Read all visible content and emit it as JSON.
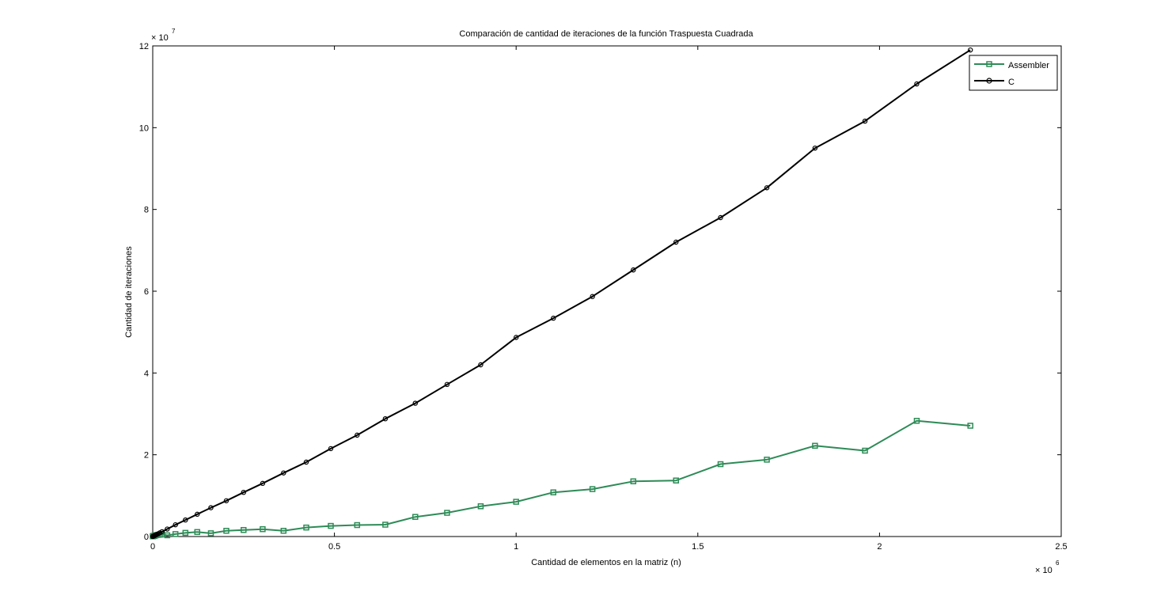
{
  "chart_data": {
    "type": "line",
    "title": "Comparación de cantidad de iteraciones de la función Traspuesta Cuadrada",
    "xlabel": "Cantidad de elementos en la matriz (n)",
    "ylabel": "Cantidad de iteraciones",
    "x_multiplier_base": "× 10",
    "x_multiplier_exp": "6",
    "y_multiplier_base": "× 10",
    "y_multiplier_exp": "7",
    "xlim": [
      0,
      2.5
    ],
    "ylim": [
      0,
      12
    ],
    "x_ticks": [
      0,
      0.5,
      1,
      1.5,
      2,
      2.5
    ],
    "x_tick_labels": [
      "0",
      "0.5",
      "1",
      "1.5",
      "2",
      "2.5"
    ],
    "y_ticks": [
      0,
      2,
      4,
      6,
      8,
      10,
      12
    ],
    "y_tick_labels": [
      "0",
      "2",
      "4",
      "6",
      "8",
      "10",
      "12"
    ],
    "grid": false,
    "legend_position": "top-right",
    "series": [
      {
        "name": "Assembler",
        "color": "#2e8b57",
        "marker": "square",
        "x": [
          0.0001,
          0.0004,
          0.0009,
          0.0016,
          0.0025,
          0.0036,
          0.0049,
          0.0064,
          0.0081,
          0.01,
          0.0144,
          0.0196,
          0.0256,
          0.04,
          0.0625,
          0.09,
          0.1225,
          0.16,
          0.2025,
          0.25,
          0.3025,
          0.36,
          0.4225,
          0.49,
          0.5625,
          0.64,
          0.7225,
          0.81,
          0.9025,
          1.0,
          1.1025,
          1.21,
          1.3225,
          1.44,
          1.5625,
          1.69,
          1.8225,
          1.96,
          2.1025,
          2.25
        ],
        "y": [
          0.005,
          0.008,
          0.01,
          0.012,
          0.015,
          0.016,
          0.02,
          0.025,
          0.03,
          0.035,
          0.04,
          0.045,
          0.05,
          0.03,
          0.06,
          0.09,
          0.11,
          0.08,
          0.14,
          0.16,
          0.18,
          0.14,
          0.22,
          0.26,
          0.28,
          0.29,
          0.48,
          0.58,
          0.74,
          0.85,
          1.08,
          1.16,
          1.35,
          1.37,
          1.77,
          1.88,
          2.22,
          2.1,
          2.83,
          2.71
        ]
      },
      {
        "name": "C",
        "color": "#000000",
        "marker": "circle",
        "x": [
          0.0001,
          0.0004,
          0.0009,
          0.0016,
          0.0025,
          0.0036,
          0.0049,
          0.0064,
          0.0081,
          0.01,
          0.0144,
          0.0196,
          0.0256,
          0.04,
          0.0625,
          0.09,
          0.1225,
          0.16,
          0.2025,
          0.25,
          0.3025,
          0.36,
          0.4225,
          0.49,
          0.5625,
          0.64,
          0.7225,
          0.81,
          0.9025,
          1.0,
          1.1025,
          1.21,
          1.3225,
          1.44,
          1.5625,
          1.69,
          1.8225,
          1.96,
          2.1025,
          2.25
        ],
        "y": [
          0.0005,
          0.002,
          0.005,
          0.008,
          0.012,
          0.016,
          0.022,
          0.03,
          0.038,
          0.046,
          0.066,
          0.09,
          0.118,
          0.183,
          0.287,
          0.405,
          0.545,
          0.705,
          0.875,
          1.08,
          1.3,
          1.555,
          1.82,
          2.15,
          2.48,
          2.88,
          3.26,
          3.72,
          4.2,
          4.87,
          5.34,
          5.87,
          6.52,
          7.2,
          7.8,
          8.53,
          9.5,
          10.16,
          11.07,
          11.9
        ]
      }
    ]
  }
}
